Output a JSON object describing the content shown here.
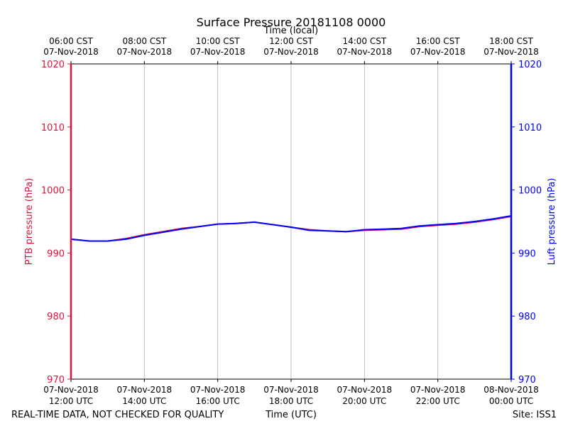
{
  "chart_data": {
    "type": "line",
    "title": "Surface Pressure 20181108 0000",
    "top_xlabel": "Time (local)",
    "xlabel": "Time (UTC)",
    "ylabel_left": "PTB pressure (hPa)",
    "ylabel_right": "Luft pressure (hPa)",
    "footer_left": "REAL-TIME DATA, NOT CHECKED FOR QUALITY",
    "footer_right": "Site: ISS1",
    "x_unit": "hours UTC since 07-Nov-2018 12:00",
    "xlim": [
      0,
      12
    ],
    "ylim": [
      970,
      1020
    ],
    "y_ticks": [
      970,
      980,
      990,
      1000,
      1010,
      1020
    ],
    "x_ticks": [
      0,
      2,
      4,
      6,
      8,
      10,
      12
    ],
    "bottom_tick_labels": [
      [
        "07-Nov-2018",
        "12:00 UTC"
      ],
      [
        "07-Nov-2018",
        "14:00 UTC"
      ],
      [
        "07-Nov-2018",
        "16:00 UTC"
      ],
      [
        "07-Nov-2018",
        "18:00 UTC"
      ],
      [
        "07-Nov-2018",
        "20:00 UTC"
      ],
      [
        "07-Nov-2018",
        "22:00 UTC"
      ],
      [
        "08-Nov-2018",
        "00:00 UTC"
      ]
    ],
    "top_tick_labels": [
      [
        "06:00 CST",
        "07-Nov-2018"
      ],
      [
        "08:00 CST",
        "07-Nov-2018"
      ],
      [
        "10:00 CST",
        "07-Nov-2018"
      ],
      [
        "12:00 CST",
        "07-Nov-2018"
      ],
      [
        "14:00 CST",
        "07-Nov-2018"
      ],
      [
        "16:00 CST",
        "07-Nov-2018"
      ],
      [
        "18:00 CST",
        "07-Nov-2018"
      ]
    ],
    "grid": "vertical",
    "colors": {
      "ptb": "#dc143c",
      "luft": "#0000ff"
    },
    "series": [
      {
        "name": "PTB pressure",
        "axis": "left",
        "x": [
          0,
          0.5,
          1,
          1.5,
          2,
          2.5,
          3,
          3.5,
          4,
          4.5,
          5,
          5.5,
          6,
          6.5,
          7,
          7.5,
          8,
          8.5,
          9,
          9.5,
          10,
          10.5,
          11,
          11.5,
          12
        ],
        "values": [
          992.2,
          991.9,
          991.9,
          992.3,
          992.9,
          993.4,
          993.9,
          994.2,
          994.6,
          994.7,
          994.9,
          994.5,
          994.1,
          993.7,
          993.5,
          993.4,
          993.6,
          993.7,
          993.8,
          994.2,
          994.4,
          994.6,
          994.9,
          995.3,
          995.8
        ]
      },
      {
        "name": "Luft pressure",
        "axis": "right",
        "x": [
          0,
          0.5,
          1,
          1.5,
          2,
          2.5,
          3,
          3.5,
          4,
          4.5,
          5,
          5.5,
          6,
          6.5,
          7,
          7.5,
          8,
          8.5,
          9,
          9.5,
          10,
          10.5,
          11,
          11.5,
          12
        ],
        "values": [
          992.2,
          991.9,
          991.9,
          992.2,
          992.8,
          993.3,
          993.8,
          994.2,
          994.6,
          994.7,
          994.9,
          994.5,
          994.1,
          993.6,
          993.5,
          993.4,
          993.7,
          993.8,
          993.9,
          994.3,
          994.5,
          994.7,
          995.0,
          995.4,
          995.9
        ]
      }
    ]
  }
}
